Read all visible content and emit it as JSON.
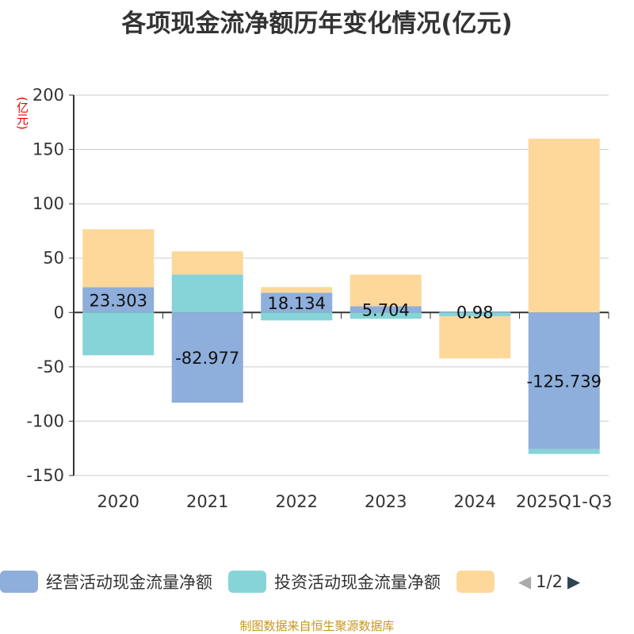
{
  "title": "各项现金流净额历年变化情况(亿元)",
  "source": "制图数据来自恒生聚源数据库",
  "chart_data": {
    "type": "bar",
    "stacked": true,
    "title": "各项现金流净额历年变化情况(亿元)",
    "ylabel": "(亿元)",
    "categories": [
      "2020",
      "2021",
      "2022",
      "2023",
      "2024",
      "2025Q1-Q3"
    ],
    "ylim": [
      -150,
      200
    ],
    "yticks": [
      -150,
      -100,
      -50,
      0,
      50,
      100,
      150,
      200
    ],
    "grid": true,
    "legend_position": "bottom",
    "legend_page": "1/2",
    "series": [
      {
        "name": "经营活动现金流量净额",
        "color": "#8eaedb",
        "values": [
          23.303,
          -82.977,
          18.134,
          5.704,
          0.98,
          -125.739
        ],
        "labels": [
          "23.303",
          "-82.977",
          "18.134",
          "5.704",
          "0.98",
          "-125.739"
        ]
      },
      {
        "name": "投资活动现金流量净额",
        "color": "#86d4d8",
        "values": [
          -39.4,
          35.0,
          -7.3,
          -5.8,
          -3.6,
          -4.4
        ]
      },
      {
        "color": "#fdd89a",
        "values": [
          53.3,
          21.2,
          5.2,
          29.1,
          -38.7,
          159.9
        ]
      }
    ]
  }
}
